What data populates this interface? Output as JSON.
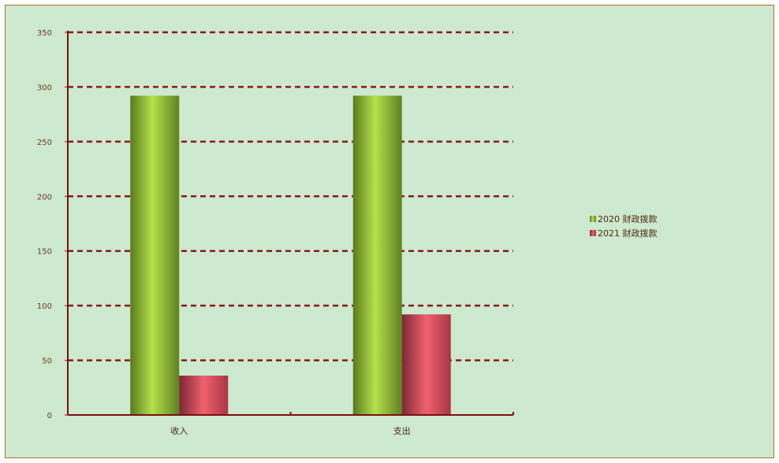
{
  "chart_data": {
    "type": "bar",
    "categories": [
      "收入",
      "支出"
    ],
    "series": [
      {
        "name": "2020 财政拨款",
        "values": [
          292,
          292
        ],
        "color": "#8cc63f"
      },
      {
        "name": "2021 财政拨款",
        "values": [
          36,
          92
        ],
        "color": "#d94a5c"
      }
    ],
    "ylim": [
      0,
      350
    ],
    "yticks": [
      0,
      50,
      100,
      150,
      200,
      250,
      300,
      350
    ],
    "grid": true,
    "legend": "right"
  },
  "colors": {
    "background": "#cde9cf",
    "axis": "#7a1010",
    "grid": "#8b1a1a"
  }
}
